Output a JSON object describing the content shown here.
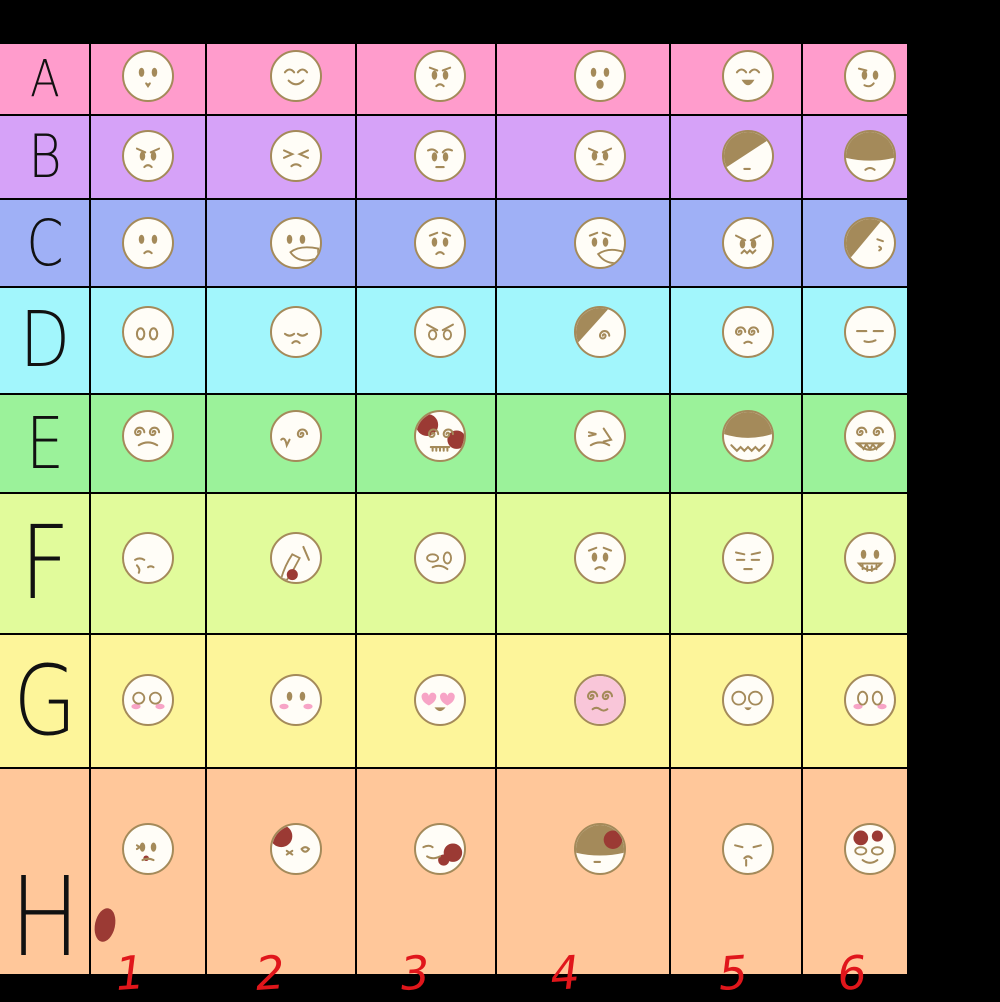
{
  "rows": [
    {
      "label": "A",
      "color": "#ff9ccc"
    },
    {
      "label": "B",
      "color": "#d6a2f8"
    },
    {
      "label": "C",
      "color": "#9fb0f6"
    },
    {
      "label": "D",
      "color": "#a2f6fc"
    },
    {
      "label": "E",
      "color": "#9bf29a"
    },
    {
      "label": "F",
      "color": "#e1fb9b"
    },
    {
      "label": "G",
      "color": "#fdf59a"
    },
    {
      "label": "H",
      "color": "#ffc79a"
    }
  ],
  "columns": [
    "1",
    "2",
    "3",
    "4",
    "5",
    "6"
  ],
  "colors": {
    "face_fill": "#fffdf7",
    "face_outline": "#a48a5a",
    "shadow": "#a48a5a",
    "blush": "#f7a4c6",
    "blood": "#9b3a34",
    "column_numbers": "#e0161b",
    "grid_lines": "#000000"
  },
  "faces": [
    [
      "neutral",
      "happy-closed-eyes",
      "worried",
      "neutral-open-mouth",
      "happy-grin",
      "smug"
    ],
    [
      "angry",
      "frustrated",
      "annoyed",
      "angry-open-mouth",
      "shadowed-eyes",
      "shadowed-frown"
    ],
    [
      "sad",
      "hand-over-mouth",
      "anxious",
      "hand-over-mouth-sad",
      "growling",
      "shadowed-side"
    ],
    [
      "wide-eyed",
      "sulking",
      "furious",
      "shadowed-scowl",
      "dizzy-spiral-eyes",
      "unimpressed"
    ],
    [
      "panicked",
      "shaking",
      "crazed-bloody",
      "trembling",
      "shadowed-grin",
      "sharp-teeth-manic"
    ],
    [
      "crying",
      "covering-face",
      "pleading",
      "teary",
      "irritated",
      "nervous-smile"
    ],
    [
      "blushing-wide-eyes",
      "shy-blush",
      "heart-eyes",
      "flustered-spiral",
      "shocked",
      "blushing-stare"
    ],
    [
      "injured",
      "bloody-eye",
      "bloody-cheek",
      "bloody-head",
      "bruised",
      "bloody-grin"
    ]
  ]
}
